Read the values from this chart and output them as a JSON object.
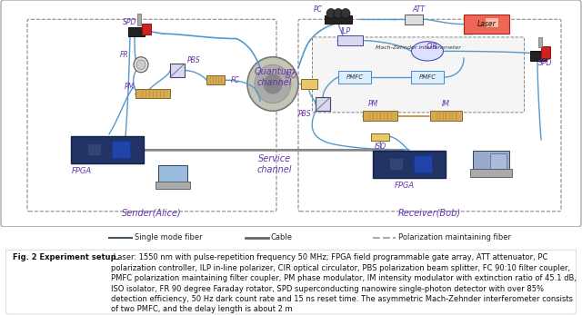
{
  "fig_title_bold": "Fig. 2 Experiment setup.",
  "fig_caption": " Laser: 1550 nm with pulse-repetition frequency 50 MHz; FPGA field programmable gate array, ATT attenuator, PC polarization controller, ILP in-line polarizer, CIR optical circulator, PBS polarization beam splitter, FC 90:10 filter coupler, PMFC polarization maintaining filter coupler, PM phase modulator, IM intensity modulator with extinction ratio of 45.1 dB, ISO isolator, FR 90 degree Faraday rotator, SPD superconducting nanowire single-photon detector with over 85% detection efficiency, 50 Hz dark count rate and 15 ns reset time. The asymmetric Mach-Zehnder interferometer consists of two PMFC, and the delay length is about 2 m",
  "bg_color": "#ffffff",
  "outer_border_color": "#aaaaaa",
  "left_box_label": "Sender(Alice)",
  "right_box_label": "Receiver(Bob)",
  "quantum_channel_label": "Quantum\nchannel",
  "service_channel_label": "Service\nchannel",
  "mach_zehnder_label": "Mach-Zehnder interferometer",
  "label_color": "#6633aa",
  "fiber_color": "#5599cc",
  "pmf_color": "#bb8833",
  "cable_color": "#888888",
  "legend_line1_color": "#445566",
  "legend_line2_color": "#666666",
  "legend_line3_color": "#aaaaaa",
  "fig_width": 6.4,
  "fig_height": 3.47
}
